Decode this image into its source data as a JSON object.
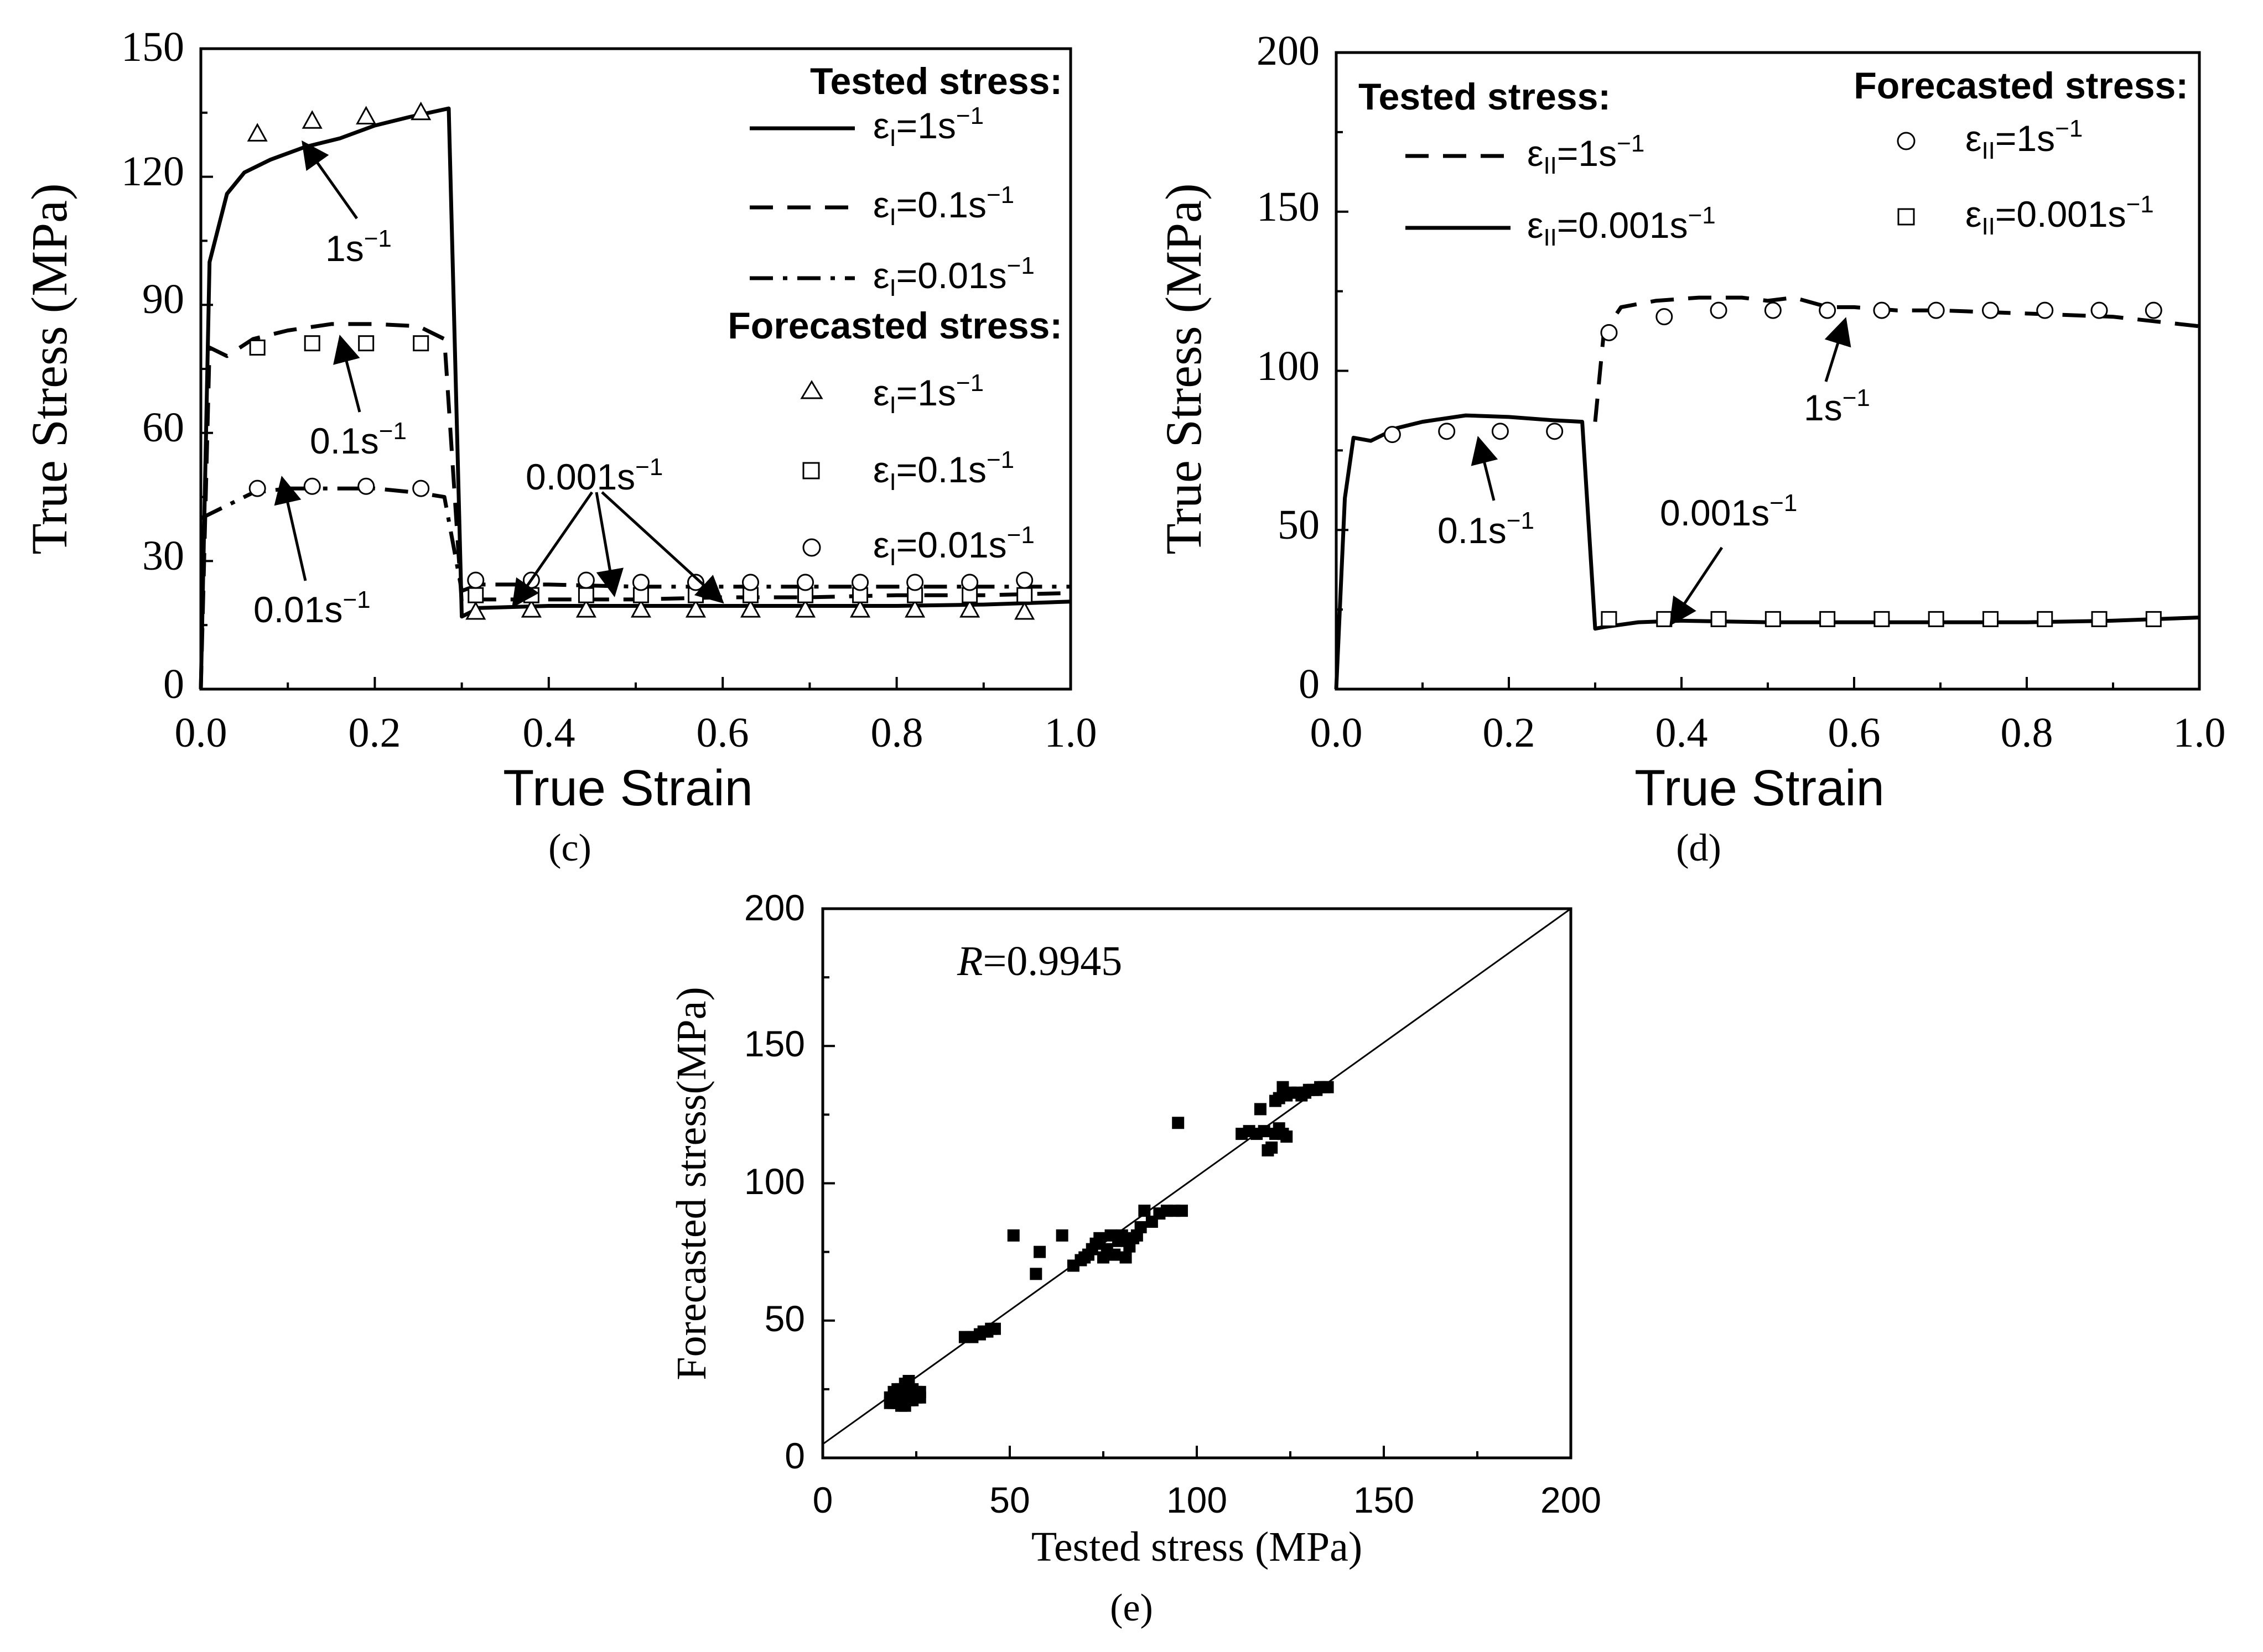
{
  "chart_data": [
    {
      "id": "c",
      "type": "line",
      "caption": "(c)",
      "xlabel": "True Strain",
      "ylabel": "True Stress (MPa)",
      "xlim": [
        0,
        1.0
      ],
      "ylim": [
        0,
        150
      ],
      "xticks": [
        "0.0",
        "0.2",
        "0.4",
        "0.6",
        "0.8",
        "1.0"
      ],
      "yticks": [
        "0",
        "30",
        "60",
        "90",
        "120",
        "150"
      ],
      "legend": {
        "tested_title": "Tested stress:",
        "forecast_title": "Forecasted stress:",
        "tested_entries": [
          {
            "sym": "ε",
            "sub": "I",
            "rate": "=1s",
            "sup": "−1",
            "style": "solid"
          },
          {
            "sym": "ε",
            "sub": "I",
            "rate": "=0.1s",
            "sup": "−1",
            "style": "dash"
          },
          {
            "sym": "ε",
            "sub": "I",
            "rate": "=0.01s",
            "sup": "−1",
            "style": "dashdot"
          }
        ],
        "forecast_entries": [
          {
            "sym": "ε",
            "sub": "I",
            "rate": "=1s",
            "sup": "−1",
            "marker": "triangle"
          },
          {
            "sym": "ε",
            "sub": "I",
            "rate": "=0.1s",
            "sup": "−1",
            "marker": "square"
          },
          {
            "sym": "ε",
            "sub": "I",
            "rate": "=0.01s",
            "sup": "−1",
            "marker": "circle"
          }
        ]
      },
      "annotations": [
        {
          "text": "1s",
          "sup": "−1"
        },
        {
          "text": "0.1s",
          "sup": "−1"
        },
        {
          "text": "0.01s",
          "sup": "−1"
        },
        {
          "text": "0.001s",
          "sup": "−1"
        }
      ],
      "series": [
        {
          "name": "Tested 1s-1",
          "style": "solid",
          "x": [
            0.0,
            0.01,
            0.03,
            0.05,
            0.08,
            0.12,
            0.16,
            0.2,
            0.24,
            0.285,
            0.3,
            0.32,
            0.4,
            0.5,
            0.6,
            0.7,
            0.8,
            0.9,
            1.0
          ],
          "y": [
            0,
            100,
            116,
            121,
            124,
            127,
            129,
            132,
            134,
            136,
            17,
            19,
            19.5,
            19.5,
            19.5,
            19.5,
            19.5,
            19.8,
            20.5
          ]
        },
        {
          "name": "Tested 0.1s-1",
          "style": "dash",
          "x": [
            0.0,
            0.01,
            0.03,
            0.06,
            0.1,
            0.15,
            0.2,
            0.25,
            0.28,
            0.3,
            0.32,
            0.4,
            0.5,
            0.6,
            0.7,
            0.8,
            0.9,
            1.0
          ],
          "y": [
            0,
            80,
            78,
            82,
            84,
            85.5,
            85.5,
            85,
            82,
            20,
            21,
            21,
            21,
            21.5,
            21.5,
            22,
            22,
            22.5
          ]
        },
        {
          "name": "Tested 0.01s-1",
          "style": "dashdot",
          "x": [
            0.0,
            0.01,
            0.03,
            0.06,
            0.1,
            0.15,
            0.2,
            0.25,
            0.28,
            0.3,
            0.32,
            0.4,
            0.5,
            0.6,
            0.7,
            0.8,
            0.9,
            1.0
          ],
          "y": [
            40,
            41,
            43,
            46,
            47,
            47,
            47,
            46,
            45,
            23,
            24.5,
            24.5,
            24,
            24,
            24,
            24,
            24,
            24
          ]
        },
        {
          "name": "Forecast 1s-1",
          "marker": "triangle",
          "x": [
            0.065,
            0.128,
            0.19,
            0.253,
            0.316,
            0.38,
            0.443,
            0.506,
            0.569,
            0.632,
            0.695,
            0.758,
            0.821,
            0.884,
            0.947
          ],
          "y": [
            130,
            133,
            134,
            135,
            18,
            18.5,
            18.5,
            18.5,
            18.5,
            18.5,
            18.5,
            18.5,
            18.5,
            18.5,
            18
          ]
        },
        {
          "name": "Forecast 0.1s-1",
          "marker": "square",
          "x": [
            0.065,
            0.128,
            0.19,
            0.253,
            0.316,
            0.38,
            0.443,
            0.506,
            0.569,
            0.632,
            0.695,
            0.758,
            0.821,
            0.884,
            0.947
          ],
          "y": [
            80,
            81,
            81,
            81,
            22,
            22,
            22,
            22,
            22,
            22,
            22,
            22,
            22,
            22,
            22
          ]
        },
        {
          "name": "Forecast 0.01s-1",
          "marker": "circle",
          "x": [
            0.065,
            0.128,
            0.19,
            0.253,
            0.316,
            0.38,
            0.443,
            0.506,
            0.569,
            0.632,
            0.695,
            0.758,
            0.821,
            0.884,
            0.947
          ],
          "y": [
            47,
            47.5,
            47.5,
            47,
            25.5,
            25.5,
            25.5,
            25,
            25,
            25,
            25,
            25,
            25,
            25,
            25.5
          ]
        }
      ]
    },
    {
      "id": "d",
      "type": "line",
      "caption": "(d)",
      "xlabel": "True Strain",
      "ylabel": "True Stress (MPa)",
      "xlim": [
        0,
        1.0
      ],
      "ylim": [
        0,
        200
      ],
      "xticks": [
        "0.0",
        "0.2",
        "0.4",
        "0.6",
        "0.8",
        "1.0"
      ],
      "yticks": [
        "0",
        "50",
        "100",
        "150",
        "200"
      ],
      "legend": {
        "tested_title": "Tested stress:",
        "forecast_title": "Forecasted stress:",
        "tested_entries": [
          {
            "sym": "ε",
            "sub": "II",
            "rate": "=1s",
            "sup": "−1",
            "style": "dash"
          },
          {
            "sym": "ε",
            "sub": "II",
            "rate": "=0.001s",
            "sup": "−1",
            "style": "solid"
          }
        ],
        "forecast_entries": [
          {
            "sym": "ε",
            "sub": "II",
            "rate": "=1s",
            "sup": "−1",
            "marker": "circle"
          },
          {
            "sym": "ε",
            "sub": "II",
            "rate": "=0.001s",
            "sup": "−1",
            "marker": "square"
          }
        ]
      },
      "annotations": [
        {
          "text": "1s",
          "sup": "−1"
        },
        {
          "text": "0.1s",
          "sup": "−1"
        },
        {
          "text": "0.001s",
          "sup": "−1"
        }
      ],
      "series": [
        {
          "name": "Tested 0.1s-1 then 1s-1",
          "style": "dash",
          "x": [
            0.3,
            0.31,
            0.33,
            0.37,
            0.42,
            0.47,
            0.5,
            0.53,
            0.57,
            0.6,
            0.65,
            0.7,
            0.8,
            0.9,
            1.0
          ],
          "y": [
            84,
            112,
            120,
            122,
            123,
            123,
            122,
            123,
            120,
            120,
            119,
            119,
            118,
            117,
            114
          ]
        },
        {
          "name": "Tested 0.1s-1 then 0.001s-1",
          "style": "solid",
          "x": [
            0.0,
            0.01,
            0.02,
            0.04,
            0.07,
            0.1,
            0.15,
            0.2,
            0.25,
            0.285,
            0.3,
            0.31,
            0.35,
            0.4,
            0.5,
            0.6,
            0.7,
            0.8,
            0.9,
            1.0
          ],
          "y": [
            0,
            60,
            79,
            78,
            82,
            84,
            86,
            85.5,
            84.5,
            84,
            19,
            19.5,
            21,
            21.5,
            21,
            21,
            21,
            21,
            21.5,
            22.5
          ]
        },
        {
          "name": "Forecast 1s-1",
          "marker": "circle",
          "x": [
            0.065,
            0.128,
            0.19,
            0.253,
            0.316,
            0.38,
            0.443,
            0.506,
            0.569,
            0.632,
            0.695,
            0.758,
            0.821,
            0.884,
            0.947
          ],
          "y": [
            80,
            81,
            81,
            81,
            112,
            117,
            119,
            119,
            119,
            119,
            119,
            119,
            119,
            119,
            119
          ]
        },
        {
          "name": "Forecast 0.001s-1",
          "marker": "square",
          "x": [
            0.316,
            0.38,
            0.443,
            0.506,
            0.569,
            0.632,
            0.695,
            0.758,
            0.821,
            0.884,
            0.947
          ],
          "y": [
            22,
            22,
            22,
            22,
            22,
            22,
            22,
            22,
            22,
            22,
            22
          ]
        }
      ]
    },
    {
      "id": "e",
      "type": "scatter",
      "caption": "(e)",
      "xlabel": "Tested stress (MPa)",
      "ylabel": "Forecasted stress(MPa)",
      "xlim": [
        0,
        200
      ],
      "ylim": [
        0,
        200
      ],
      "xticks": [
        "0",
        "50",
        "100",
        "150",
        "200"
      ],
      "yticks": [
        "0",
        "50",
        "100",
        "150",
        "200"
      ],
      "annotation": {
        "italic": "R",
        "text": "=0.9945"
      },
      "fit_line": {
        "x": [
          0,
          200
        ],
        "y": [
          5,
          200
        ]
      },
      "points": [
        [
          18,
          22
        ],
        [
          19,
          24
        ],
        [
          20,
          20
        ],
        [
          21,
          19
        ],
        [
          22,
          23
        ],
        [
          23,
          21
        ],
        [
          24,
          25
        ],
        [
          19,
          20
        ],
        [
          20,
          25
        ],
        [
          22,
          27
        ],
        [
          25,
          24
        ],
        [
          24,
          21
        ],
        [
          18,
          20
        ],
        [
          21,
          25
        ],
        [
          23,
          23
        ],
        [
          26,
          24
        ],
        [
          20,
          22
        ],
        [
          22,
          19
        ],
        [
          25,
          22
        ],
        [
          19,
          21
        ],
        [
          23,
          28
        ],
        [
          21,
          21
        ],
        [
          24,
          23
        ],
        [
          26,
          22
        ],
        [
          38,
          44
        ],
        [
          40,
          44
        ],
        [
          42,
          45
        ],
        [
          43,
          46
        ],
        [
          44,
          46
        ],
        [
          45,
          47
        ],
        [
          46,
          47
        ],
        [
          51,
          81
        ],
        [
          57,
          67
        ],
        [
          58,
          75
        ],
        [
          64,
          81
        ],
        [
          67,
          70
        ],
        [
          69,
          72
        ],
        [
          70,
          73
        ],
        [
          71,
          74
        ],
        [
          72,
          76
        ],
        [
          73,
          78
        ],
        [
          74,
          80
        ],
        [
          75,
          73
        ],
        [
          76,
          76
        ],
        [
          77,
          81
        ],
        [
          78,
          74
        ],
        [
          79,
          79
        ],
        [
          80,
          81
        ],
        [
          81,
          73
        ],
        [
          82,
          77
        ],
        [
          83,
          80
        ],
        [
          84,
          81
        ],
        [
          85,
          84
        ],
        [
          86,
          90
        ],
        [
          88,
          86
        ],
        [
          90,
          89
        ],
        [
          92,
          90
        ],
        [
          94,
          90
        ],
        [
          96,
          90
        ],
        [
          95,
          122
        ],
        [
          112,
          118
        ],
        [
          114,
          119
        ],
        [
          116,
          118
        ],
        [
          118,
          119
        ],
        [
          119,
          112
        ],
        [
          120,
          113
        ],
        [
          121,
          118
        ],
        [
          122,
          120
        ],
        [
          123,
          118
        ],
        [
          124,
          117
        ],
        [
          117,
          127
        ],
        [
          121,
          130
        ],
        [
          122,
          131
        ],
        [
          123,
          135
        ],
        [
          124,
          132
        ],
        [
          125,
          133
        ],
        [
          127,
          133
        ],
        [
          128,
          132
        ],
        [
          129,
          133
        ],
        [
          130,
          134
        ],
        [
          131,
          134
        ],
        [
          132,
          134
        ],
        [
          133,
          135
        ],
        [
          134,
          135
        ],
        [
          135,
          135
        ]
      ]
    }
  ]
}
